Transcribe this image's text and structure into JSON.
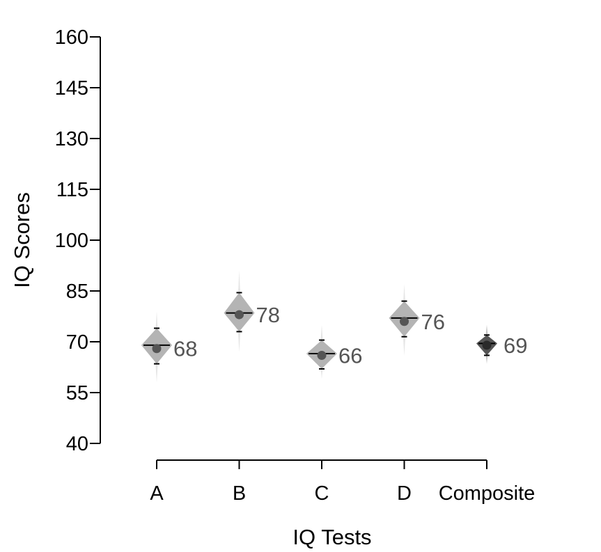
{
  "chart_data": {
    "type": "scatter",
    "title": "",
    "xlabel": "IQ Tests",
    "ylabel": "IQ Scores",
    "ylim": [
      40,
      160
    ],
    "yticks": [
      40,
      55,
      70,
      85,
      100,
      115,
      130,
      145,
      160
    ],
    "categories": [
      "A",
      "B",
      "C",
      "D",
      "Composite"
    ],
    "series": [
      {
        "values": [
          68,
          78,
          66,
          76,
          69
        ],
        "labels": [
          "68",
          "78",
          "66",
          "76",
          "69"
        ],
        "ci_lower": [
          63.5,
          73,
          62,
          71.5,
          66
        ],
        "ci_upper": [
          74,
          84.5,
          70.5,
          82,
          72
        ],
        "median": [
          69,
          78.5,
          66.5,
          77,
          69.5
        ],
        "density_min": [
          58,
          67,
          59,
          66,
          63.5
        ],
        "density_max": [
          79,
          91,
          75,
          87,
          75
        ],
        "colors": [
          "#b4b4b4",
          "#b4b4b4",
          "#b4b4b4",
          "#b4b4b4",
          "#555555"
        ],
        "point_colors": [
          "#555555",
          "#555555",
          "#555555",
          "#555555",
          "#2a2a2a"
        ]
      }
    ],
    "grid": false,
    "legend": "none"
  }
}
